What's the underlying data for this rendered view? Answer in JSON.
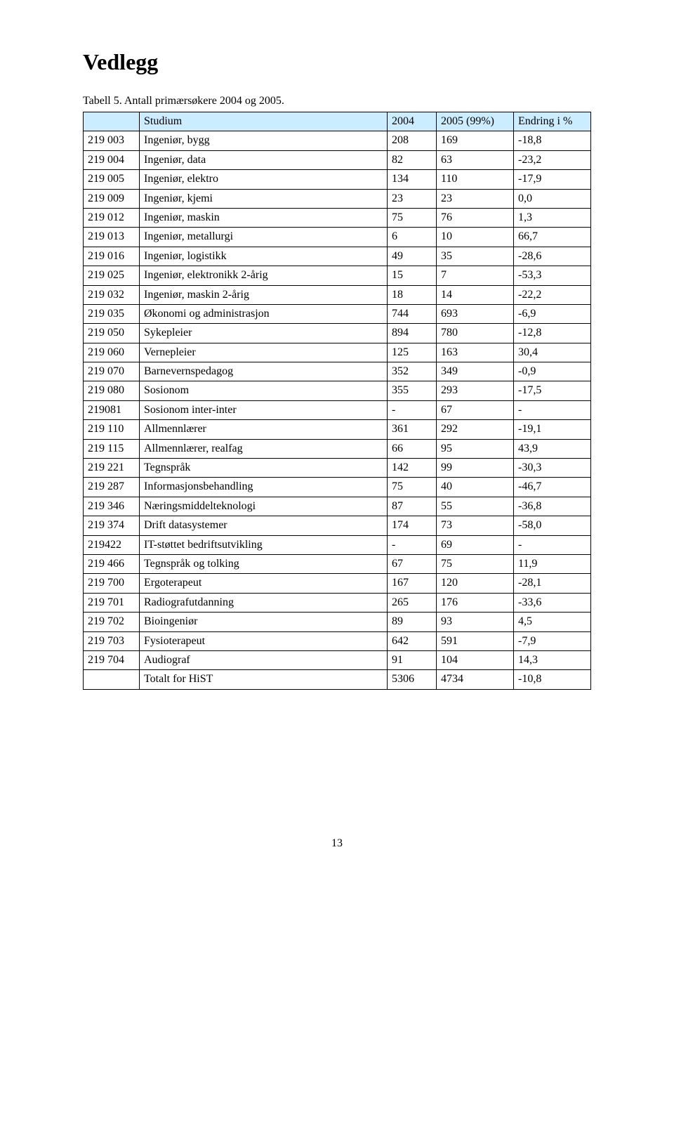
{
  "heading": "Vedlegg",
  "caption": "Tabell 5. Antall primærsøkere 2004 og 2005.",
  "page_number": "13",
  "table": {
    "header_bg": "#ccecff",
    "columns": [
      "",
      "Studium",
      "2004",
      "2005 (99%)",
      "Endring i %"
    ],
    "rows": [
      [
        "219 003",
        "Ingeniør, bygg",
        "208",
        "169",
        "-18,8"
      ],
      [
        "219 004",
        "Ingeniør, data",
        "82",
        "63",
        "-23,2"
      ],
      [
        "219 005",
        "Ingeniør, elektro",
        "134",
        "110",
        "-17,9"
      ],
      [
        "219 009",
        "Ingeniør, kjemi",
        "23",
        "23",
        "0,0"
      ],
      [
        "219 012",
        "Ingeniør, maskin",
        "75",
        "76",
        "1,3"
      ],
      [
        "219 013",
        "Ingeniør, metallurgi",
        "6",
        "10",
        "66,7"
      ],
      [
        "219 016",
        "Ingeniør, logistikk",
        "49",
        "35",
        "-28,6"
      ],
      [
        "219 025",
        "Ingeniør, elektronikk 2-årig",
        "15",
        "7",
        "-53,3"
      ],
      [
        "219 032",
        "Ingeniør, maskin 2-årig",
        "18",
        "14",
        "-22,2"
      ],
      [
        "219 035",
        "Økonomi og administrasjon",
        "744",
        "693",
        "-6,9"
      ],
      [
        "219 050",
        "Sykepleier",
        "894",
        "780",
        "-12,8"
      ],
      [
        "219 060",
        "Vernepleier",
        "125",
        "163",
        "30,4"
      ],
      [
        "219 070",
        "Barnevernspedagog",
        "352",
        "349",
        "-0,9"
      ],
      [
        "219 080",
        "Sosionom",
        "355",
        "293",
        "-17,5"
      ],
      [
        "219081",
        "Sosionom inter-inter",
        "-",
        "67",
        "-"
      ],
      [
        "219 110",
        "Allmennlærer",
        "361",
        "292",
        "-19,1"
      ],
      [
        "219 115",
        "Allmennlærer, realfag",
        "66",
        "95",
        "43,9"
      ],
      [
        "219 221",
        "Tegnspråk",
        "142",
        "99",
        "-30,3"
      ],
      [
        "219 287",
        "Informasjonsbehandling",
        "75",
        "40",
        "-46,7"
      ],
      [
        "219 346",
        "Næringsmiddelteknologi",
        "87",
        "55",
        "-36,8"
      ],
      [
        "219 374",
        "Drift datasystemer",
        "174",
        "73",
        "-58,0"
      ],
      [
        "219422",
        "IT-støttet bedriftsutvikling",
        "-",
        "69",
        "-"
      ],
      [
        "219 466",
        "Tegnspråk og tolking",
        "67",
        "75",
        "11,9"
      ],
      [
        "219 700",
        "Ergoterapeut",
        "167",
        "120",
        "-28,1"
      ],
      [
        "219 701",
        "Radiografutdanning",
        "265",
        "176",
        "-33,6"
      ],
      [
        "219 702",
        "Bioingeniør",
        "89",
        "93",
        "4,5"
      ],
      [
        "219 703",
        "Fysioterapeut",
        "642",
        "591",
        "-7,9"
      ],
      [
        "219 704",
        "Audiograf",
        "91",
        "104",
        "14,3"
      ],
      [
        "",
        "Totalt for HiST",
        "5306",
        "4734",
        "-10,8"
      ]
    ]
  }
}
